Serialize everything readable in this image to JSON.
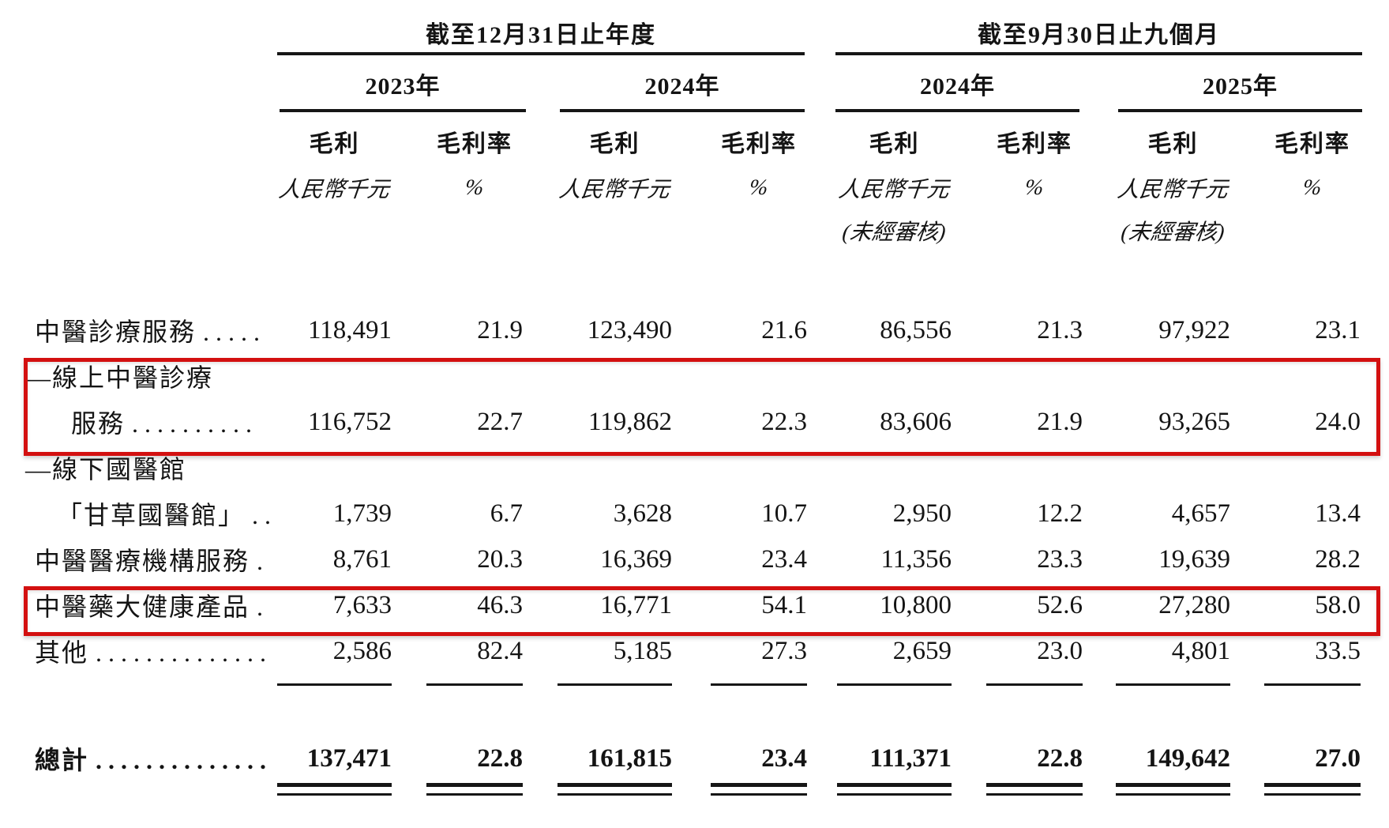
{
  "document": {
    "language": "zh-Hant",
    "description_of_view": "Gross profit and gross profit margin segment table with two red highlight boxes"
  },
  "colors": {
    "highlight_box_red": "#d31010",
    "text": "#141414",
    "background": "#ffffff"
  },
  "header": {
    "group1": {
      "title": "截至12月31日止年度",
      "years": [
        "2023年",
        "2024年"
      ]
    },
    "group2": {
      "title": "截至9月30日止九個月",
      "years": [
        "2024年",
        "2025年"
      ]
    },
    "col_gross_profit": "毛利",
    "col_gross_margin": "毛利率",
    "unit_rmb": "人民幣千元",
    "unit_pct": "%",
    "unaudited": "(未經審核)"
  },
  "table": {
    "rows": [
      {
        "label": "中醫診療服務",
        "dots": ".....",
        "values": [
          "118,491",
          "21.9",
          "123,490",
          "21.6",
          "86,556",
          "21.3",
          "97,922",
          "23.1"
        ],
        "highlighted": false
      },
      {
        "label_line1": "—線上中醫診療",
        "label_line2": "服務",
        "dots": "..........",
        "values": [
          "116,752",
          "22.7",
          "119,862",
          "22.3",
          "83,606",
          "21.9",
          "93,265",
          "24.0"
        ],
        "highlighted": true
      },
      {
        "label_line1": "—線下國醫館",
        "label_line2": "「甘草國醫館」",
        "dots": "..",
        "values": [
          "1,739",
          "6.7",
          "3,628",
          "10.7",
          "2,950",
          "12.2",
          "4,657",
          "13.4"
        ],
        "highlighted": false
      },
      {
        "label": "中醫醫療機構服務",
        "dots": ".",
        "values": [
          "8,761",
          "20.3",
          "16,369",
          "23.4",
          "11,356",
          "23.3",
          "19,639",
          "28.2"
        ],
        "highlighted": false
      },
      {
        "label": "中醫藥大健康產品",
        "dots": ".",
        "values": [
          "7,633",
          "46.3",
          "16,771",
          "54.1",
          "10,800",
          "52.6",
          "27,280",
          "58.0"
        ],
        "highlighted": true
      },
      {
        "label": "其他",
        "dots": "..............",
        "values": [
          "2,586",
          "82.4",
          "5,185",
          "27.3",
          "2,659",
          "23.0",
          "4,801",
          "33.5"
        ],
        "highlighted": false
      }
    ],
    "total": {
      "label": "總計",
      "dots": "..............",
      "values": [
        "137,471",
        "22.8",
        "161,815",
        "23.4",
        "111,371",
        "22.8",
        "149,642",
        "27.0"
      ]
    }
  }
}
